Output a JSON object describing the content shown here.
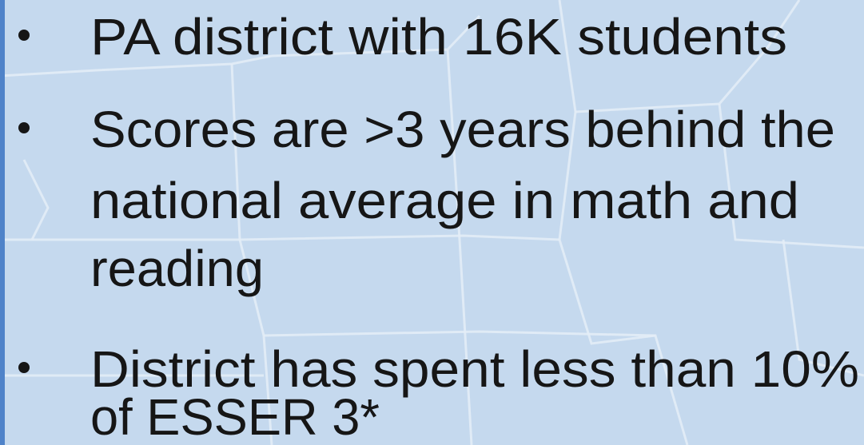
{
  "slide": {
    "bullets": [
      {
        "lines": [
          "PA district with 16K students"
        ]
      },
      {
        "lines": [
          "Scores are >3 years behind the",
          "national average in math and",
          "reading"
        ]
      },
      {
        "lines": [
          "District has spent less than 10%",
          "of ESSER 3*"
        ]
      }
    ]
  }
}
